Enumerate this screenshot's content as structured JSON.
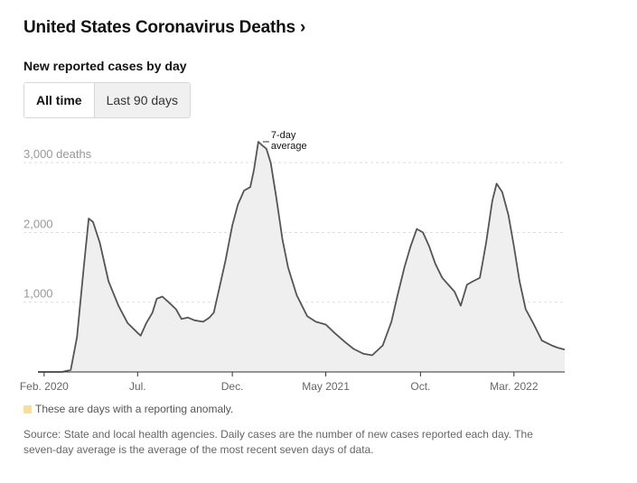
{
  "header": {
    "title": "United States Coronavirus Deaths",
    "title_chevron": "›",
    "subtitle": "New reported cases by day"
  },
  "toggle": {
    "options": [
      "All time",
      "Last 90 days"
    ],
    "selected": "All time"
  },
  "legend": {
    "anomaly_label": "These are days with a reporting anomaly.",
    "anomaly_color": "#f6df9c"
  },
  "source": "Source: State and local health agencies. Daily cases are the number of new cases reported each day. The seven-day average is the average of the most recent seven days of data.",
  "colors": {
    "line": "#555555",
    "area": "#efefef",
    "grid": "#dddddd",
    "axis": "#333333"
  },
  "chart_data": {
    "type": "area",
    "annotation": "7-day average",
    "x_tick_labels": [
      "Feb. 2020",
      "Jul.",
      "Dec.",
      "May 2021",
      "Oct.",
      "Mar. 2022"
    ],
    "x_tick_dates": [
      "2020-02-01",
      "2020-07-01",
      "2020-12-01",
      "2021-05-01",
      "2021-10-01",
      "2022-03-01"
    ],
    "y_ticks": [
      {
        "value": 1000,
        "label": "1,000"
      },
      {
        "value": 2000,
        "label": "2,000"
      },
      {
        "value": 3000,
        "label": "3,000 deaths"
      }
    ],
    "xlim": [
      "2020-01-22",
      "2022-05-22"
    ],
    "ylim": [
      0,
      3300
    ],
    "grid": true,
    "series": [
      {
        "x": [
          "2020-01-22",
          "2020-03-01",
          "2020-03-15",
          "2020-03-25",
          "2020-04-05",
          "2020-04-13",
          "2020-04-20",
          "2020-05-01",
          "2020-05-15",
          "2020-05-31",
          "2020-06-15",
          "2020-07-01",
          "2020-07-06",
          "2020-07-15",
          "2020-07-25",
          "2020-08-01",
          "2020-08-10",
          "2020-08-20",
          "2020-09-01",
          "2020-09-10",
          "2020-09-20",
          "2020-10-01",
          "2020-10-15",
          "2020-10-25",
          "2020-11-01",
          "2020-11-10",
          "2020-11-20",
          "2020-12-01",
          "2020-12-10",
          "2020-12-20",
          "2020-12-30",
          "2021-01-05",
          "2021-01-12",
          "2021-01-18",
          "2021-01-25",
          "2021-02-01",
          "2021-02-10",
          "2021-02-20",
          "2021-03-01",
          "2021-03-15",
          "2021-04-01",
          "2021-04-15",
          "2021-05-01",
          "2021-05-15",
          "2021-06-01",
          "2021-06-15",
          "2021-07-01",
          "2021-07-15",
          "2021-08-01",
          "2021-08-15",
          "2021-08-25",
          "2021-09-05",
          "2021-09-15",
          "2021-09-25",
          "2021-10-05",
          "2021-10-15",
          "2021-10-25",
          "2021-11-05",
          "2021-11-15",
          "2021-11-25",
          "2021-12-05",
          "2021-12-15",
          "2021-12-25",
          "2022-01-05",
          "2022-01-15",
          "2022-01-25",
          "2022-02-01",
          "2022-02-10",
          "2022-02-20",
          "2022-03-01",
          "2022-03-10",
          "2022-03-20",
          "2022-04-01",
          "2022-04-15",
          "2022-05-01",
          "2022-05-10",
          "2022-05-22"
        ],
        "y": [
          0,
          0,
          30,
          500,
          1500,
          2200,
          2150,
          1850,
          1300,
          950,
          700,
          560,
          520,
          700,
          850,
          1050,
          1080,
          1000,
          900,
          760,
          780,
          740,
          720,
          780,
          850,
          1200,
          1600,
          2100,
          2400,
          2600,
          2650,
          2900,
          3300,
          3250,
          3200,
          3000,
          2500,
          1900,
          1500,
          1100,
          800,
          720,
          680,
          560,
          430,
          330,
          260,
          240,
          380,
          720,
          1100,
          1500,
          1800,
          2050,
          2000,
          1800,
          1550,
          1350,
          1250,
          1150,
          950,
          1250,
          1300,
          1350,
          1850,
          2450,
          2700,
          2580,
          2250,
          1800,
          1300,
          900,
          700,
          450,
          380,
          350,
          320
        ]
      }
    ]
  }
}
